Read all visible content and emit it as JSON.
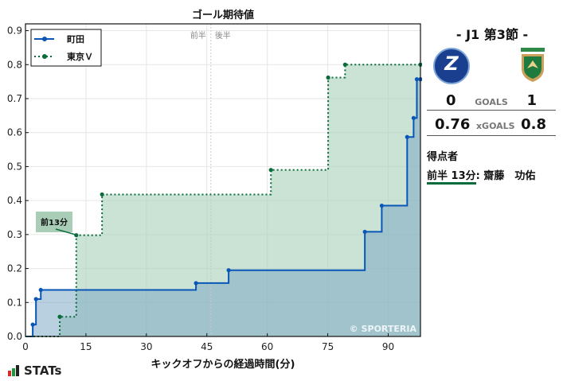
{
  "chart_data": {
    "type": "line",
    "title": "ゴール期待値",
    "xlabel": "キックオフからの経過時間(分)",
    "ylabel": "",
    "xlim": [
      0,
      98
    ],
    "ylim": [
      0,
      0.92
    ],
    "xticks": [
      0,
      15,
      30,
      45,
      60,
      75,
      90
    ],
    "yticks": [
      0.0,
      0.1,
      0.2,
      0.3,
      0.4,
      0.5,
      0.6,
      0.7,
      0.8,
      0.9
    ],
    "grid": true,
    "legend_position": "upper left",
    "half_marker": {
      "x": 46,
      "labels": [
        "前半",
        "後半"
      ]
    },
    "annotation": {
      "text": "前13分",
      "x": 12.6,
      "y": 0.298
    },
    "watermark": "© SPORTERIA",
    "series": [
      {
        "name": "町田",
        "color": "#0a56b8",
        "style": "solid",
        "x": [
          0,
          1.8,
          2.6,
          3.8,
          42.3,
          50.4,
          84.2,
          88.4,
          94.7,
          96.3,
          97.1,
          98
        ],
        "y": [
          0,
          0.035,
          0.11,
          0.137,
          0.157,
          0.195,
          0.308,
          0.385,
          0.587,
          0.643,
          0.757,
          0.757
        ]
      },
      {
        "name": "東京Ｖ",
        "color": "#0a6b3b",
        "style": "dotted",
        "x": [
          0,
          8.5,
          12.6,
          19.0,
          60.9,
          75.1,
          79.3,
          98
        ],
        "y": [
          0,
          0.058,
          0.298,
          0.418,
          0.49,
          0.762,
          0.8,
          0.8
        ]
      }
    ]
  },
  "side": {
    "round": "- J1 第3節 -",
    "home_goals": "0",
    "away_goals": "1",
    "goals_label": "GOALS",
    "home_xg": "0.76",
    "away_xg": "0.8",
    "xg_label": "xGOALS",
    "scorers_title": "得点者",
    "scorer_time": "前半 13分",
    "scorer_name": ": 齋藤　功佑"
  },
  "footer": {
    "brand": "STATs"
  }
}
